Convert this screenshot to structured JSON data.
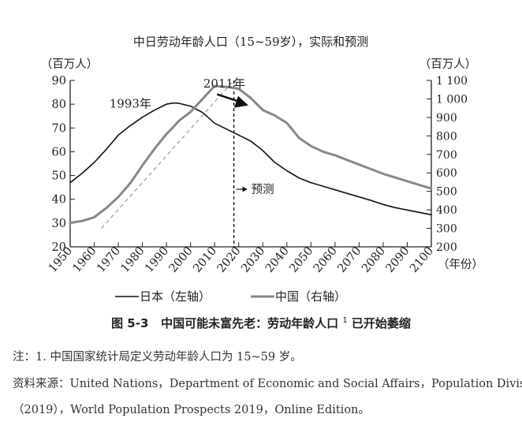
{
  "chart_data": {
    "type": "line",
    "title": "中日劳动年龄人口（15~59岁），实际和预测",
    "x": [
      1950,
      1955,
      1960,
      1965,
      1970,
      1975,
      1980,
      1985,
      1990,
      1993,
      1995,
      2000,
      2005,
      2010,
      2015,
      2020,
      2025,
      2030,
      2035,
      2040,
      2045,
      2050,
      2055,
      2060,
      2065,
      2070,
      2075,
      2080,
      2085,
      2090,
      2095,
      2100
    ],
    "xticks": [
      1950,
      1960,
      1970,
      1980,
      1990,
      2000,
      2010,
      2020,
      2030,
      2040,
      2050,
      2060,
      2070,
      2080,
      2090,
      2100
    ],
    "xlim": [
      1950,
      2100
    ],
    "x_unit_label": "（年份）",
    "left_axis": {
      "label": "（百万人）",
      "ylim": [
        20,
        90
      ],
      "ticks": [
        20,
        30,
        40,
        50,
        60,
        70,
        80,
        90
      ]
    },
    "right_axis": {
      "label": "（百万人）",
      "ylim": [
        200,
        1100
      ],
      "ticks": [
        200,
        300,
        400,
        500,
        600,
        700,
        800,
        900,
        1000,
        1100
      ],
      "tick_labels": [
        "200",
        "300",
        "400",
        "500",
        "600",
        "700",
        "800",
        "900",
        "1 000",
        "1 100"
      ]
    },
    "series": [
      {
        "name": "日本（左轴）",
        "axis": "left",
        "color": "#111111",
        "values": [
          47,
          51,
          55.5,
          61,
          67,
          71,
          74.5,
          77.5,
          80,
          80.5,
          80.4,
          79.2,
          76.5,
          72,
          69.5,
          67,
          64.5,
          60.5,
          55.5,
          52,
          49,
          47,
          45.5,
          44,
          42.5,
          41,
          39.5,
          37.8,
          36.5,
          35.5,
          34.5,
          33.5
        ]
      },
      {
        "name": "中国（右轴）",
        "axis": "right",
        "color": "#888888",
        "values": [
          330,
          340,
          360,
          410,
          470,
          545,
          640,
          730,
          810,
          850,
          880,
          930,
          1000,
          1070,
          1065,
          1055,
          1005,
          940,
          910,
          870,
          790,
          745,
          715,
          695,
          670,
          645,
          620,
          595,
          575,
          555,
          535,
          515
        ]
      }
    ],
    "trend_line": {
      "style": "dashed",
      "color": "#999999",
      "from_year": 1963,
      "to_year": 2018
    },
    "forecast_line": {
      "year": 2018,
      "style": "dashed"
    },
    "annotations": [
      {
        "text": "1993年",
        "x": 1993
      },
      {
        "text": "2011年",
        "x": 2011
      },
      {
        "text": "预测",
        "x": 2020
      }
    ],
    "legend": {
      "placement": "bottom",
      "entries": [
        "日本（左轴）",
        "中国（右轴）"
      ]
    }
  },
  "caption": {
    "prefix": "图 5-3",
    "text": "中国可能未富先老：劳动年龄人口",
    "sup": "1",
    "suffix": "已开始萎缩"
  },
  "notes": {
    "line1": "注：1. 中国国家统计局定义劳动年龄人口为 15~59 岁。",
    "line2": "资料来源：United Nations，Department of Economic and Social Affairs，Population Division",
    "line3": "（2019），World Population Prospects 2019，Online Edition。"
  }
}
